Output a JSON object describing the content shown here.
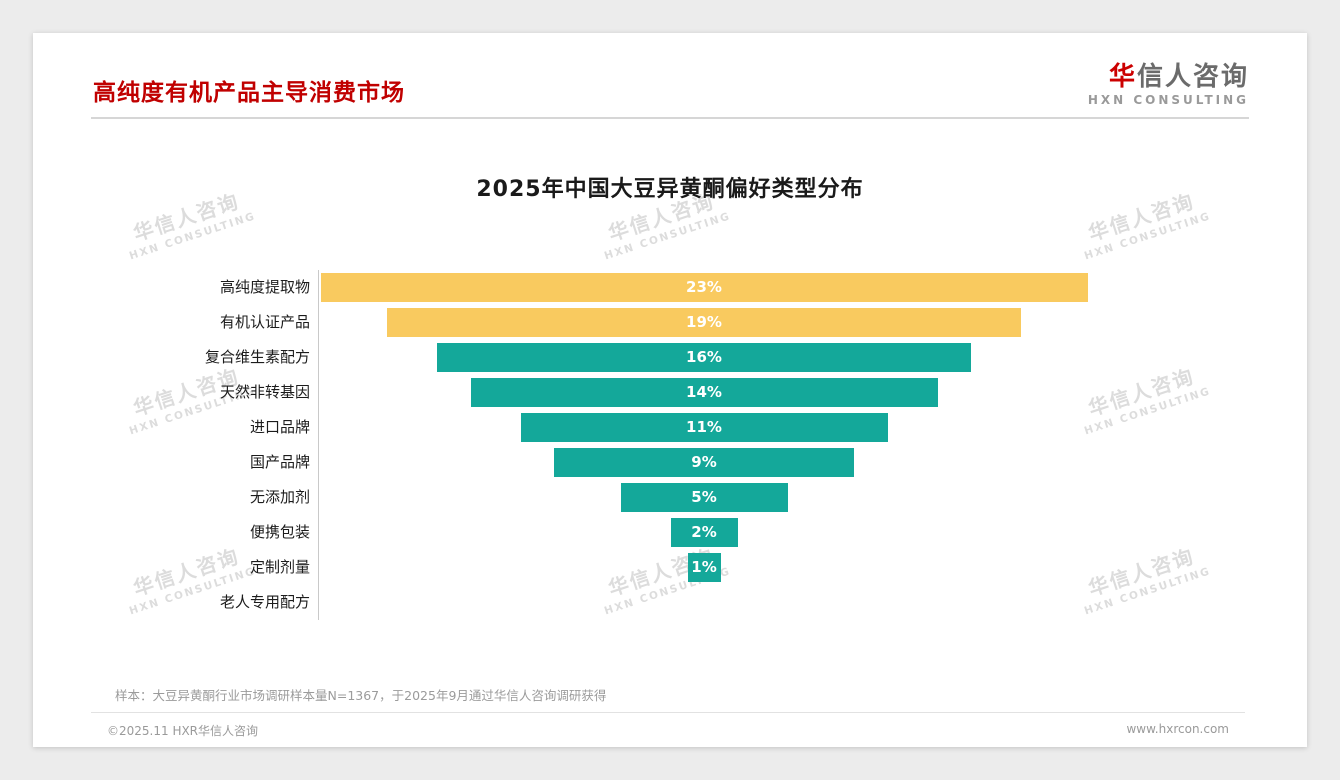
{
  "page": {
    "header": {
      "title": "高纯度有机产品主导消费市场"
    },
    "logo": {
      "zh_highlight": "华",
      "zh_rest": "信人咨询",
      "en": "HXN CONSULTING"
    },
    "watermark": {
      "line1": "华信人咨询",
      "line2": "HXN CONSULTING"
    },
    "footnote": "样本：大豆异黄酮行业市场调研样本量N=1367，于2025年9月通过华信人咨询调研获得",
    "footer": {
      "left": "©2025.11 HXR华信人咨询",
      "right": "www.hxrcon.com"
    }
  },
  "chart_data": {
    "type": "bar",
    "subtype": "centered-horizontal-funnel",
    "title": "2025年中国大豆异黄酮偏好类型分布",
    "categories": [
      "高纯度提取物",
      "有机认证产品",
      "复合维生素配方",
      "天然非转基因",
      "进口品牌",
      "国产品牌",
      "无添加剂",
      "便携包装",
      "定制剂量",
      "老人专用配方"
    ],
    "values": [
      23,
      19,
      16,
      14,
      11,
      9,
      5,
      2,
      1,
      0
    ],
    "unit": "%",
    "value_label_format": "{v}%",
    "bar_colors": [
      "#f9ca5f",
      "#f9ca5f",
      "#14a89a",
      "#14a89a",
      "#14a89a",
      "#14a89a",
      "#14a89a",
      "#14a89a",
      "#14a89a",
      "#14a89a"
    ],
    "highlight_color": "#f9ca5f",
    "default_color": "#14a89a",
    "axis": {
      "left_baseline": true,
      "gridlines": false
    },
    "legend": null
  }
}
